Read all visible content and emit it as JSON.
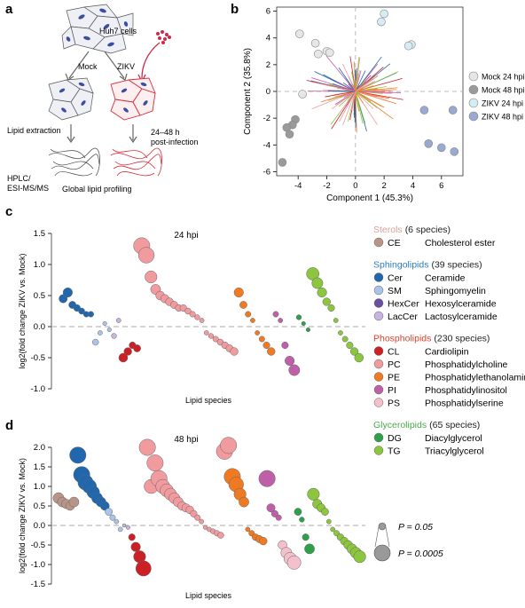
{
  "panels": {
    "a": {
      "letter": "a",
      "labels": {
        "cells": "Huh7 cells",
        "mock": "Mock",
        "zikv": "ZIKV",
        "lipid_extraction": "Lipid extraction",
        "timing_line1": "24–48 h",
        "timing_line2": "post-infection",
        "hplc_line1": "HPLC/",
        "hplc_line2": "ESI-MS/MS",
        "global": "Global lipid profiling"
      }
    },
    "b": {
      "letter": "b",
      "chart_data": {
        "type": "scatter",
        "xlabel": "Component 1 (45.3%)",
        "ylabel": "Component 2 (35.8%)",
        "xlim": [
          -5.5,
          7.5
        ],
        "ylim": [
          -6.3,
          6.3
        ],
        "xticks": [
          -4,
          -2,
          0,
          2,
          4,
          6
        ],
        "yticks": [
          -6,
          -4,
          -2,
          0,
          2,
          4,
          6
        ],
        "legend_position": "right",
        "series": [
          {
            "name": "Mock 24 hpi",
            "color": "#e6e6e6",
            "points": [
              [
                -3.9,
                4.3
              ],
              [
                -2.8,
                3.6
              ],
              [
                -2.0,
                3.0
              ],
              [
                -1.8,
                2.9
              ],
              [
                -2.6,
                2.8
              ],
              [
                -3.7,
                -0.2
              ]
            ]
          },
          {
            "name": "Mock 48 hpi",
            "color": "#9a9a9a",
            "points": [
              [
                -4.2,
                -2.1
              ],
              [
                -4.4,
                -2.5
              ],
              [
                -4.8,
                -2.7
              ],
              [
                -4.6,
                -3.2
              ],
              [
                -5.1,
                -5.3
              ]
            ]
          },
          {
            "name": "ZIKV 24 hpi",
            "color": "#d4edf2",
            "points": [
              [
                2.0,
                5.8
              ],
              [
                1.8,
                5.2
              ],
              [
                3.9,
                3.5
              ],
              [
                3.7,
                3.4
              ]
            ]
          },
          {
            "name": "ZIKV 48 hpi",
            "color": "#99a9cf",
            "points": [
              [
                4.8,
                -1.4
              ],
              [
                6.8,
                -1.4
              ],
              [
                5.1,
                -3.9
              ],
              [
                6.0,
                -4.2
              ],
              [
                6.9,
                -4.5
              ]
            ]
          }
        ]
      }
    },
    "c": {
      "letter": "c",
      "chart_data": {
        "type": "scatter",
        "title": "24 hpi",
        "xlabel": "Lipid species",
        "ylabel": "log2(fold change ZIKV vs. Mock)",
        "ylim": [
          -1.0,
          1.5
        ],
        "yticks": [
          "1.5",
          "1.0",
          "0.5",
          "0.0",
          "-0.5",
          "-1.0"
        ],
        "groups": [
          {
            "class": "CE",
            "color": "#b99488",
            "values": []
          },
          {
            "class": "Cer",
            "color": "#2167ae",
            "values": [
              0.45,
              0.55,
              0.35,
              0.3,
              0.25,
              0.2,
              0.2
            ]
          },
          {
            "class": "SM",
            "color": "#a9c4e8",
            "values": [
              -0.25,
              -0.1,
              0.05,
              -0.05
            ]
          },
          {
            "class": "LacCer",
            "color": "#c7b4e0",
            "values": [
              -0.15,
              0.1
            ]
          },
          {
            "class": "CL",
            "color": "#cc2027",
            "values": [
              -0.5,
              -0.4,
              -0.3,
              -0.35
            ]
          },
          {
            "class": "PC",
            "color": "#f19b9f",
            "values": [
              1.3,
              1.15,
              0.8,
              0.6,
              0.5,
              0.45,
              0.4,
              0.35,
              0.3,
              0.3,
              0.25,
              0.2,
              0.15,
              0.1,
              -0.1,
              -0.15,
              -0.2,
              -0.25,
              -0.3,
              -0.35,
              -0.4
            ]
          },
          {
            "class": "PE",
            "color": "#f07a21",
            "values": [
              0.55,
              0.35,
              0.2,
              0.1,
              -0.1,
              -0.2,
              -0.3,
              -0.4
            ]
          },
          {
            "class": "PI",
            "color": "#bf5fa8",
            "values": [
              0.2,
              0.1,
              -0.3,
              -0.55,
              -0.7
            ]
          },
          {
            "class": "DG",
            "color": "#2ca14a",
            "values": [
              0.15,
              0.05,
              -0.05
            ]
          },
          {
            "class": "TG",
            "color": "#8cc63f",
            "values": [
              0.85,
              0.7,
              0.55,
              0.4,
              0.3,
              0.1,
              -0.1,
              -0.2,
              -0.3,
              -0.4,
              -0.5
            ]
          }
        ]
      }
    },
    "d": {
      "letter": "d",
      "chart_data": {
        "type": "scatter",
        "title": "48 hpi",
        "xlabel": "Lipid species",
        "ylabel": "log2(fold change ZIKV vs. Mock)",
        "ylim": [
          -1.5,
          2.0
        ],
        "yticks": [
          "2.0",
          "1.5",
          "1.0",
          "0.5",
          "0.0",
          "-0.5",
          "-1.0",
          "-1.5"
        ],
        "groups": [
          {
            "class": "CE",
            "color": "#b99488",
            "values": [
              0.7,
              0.6,
              0.55,
              0.5,
              0.6
            ]
          },
          {
            "class": "Cer",
            "color": "#2167ae",
            "values": [
              1.8,
              1.3,
              1.1,
              1.0,
              0.85,
              0.7,
              0.6,
              0.5
            ]
          },
          {
            "class": "SM",
            "color": "#a9c4e8",
            "values": [
              0.35,
              0.2,
              0.1,
              -0.1
            ]
          },
          {
            "class": "LacCer",
            "color": "#c7b4e0",
            "values": [
              0.0,
              -0.05
            ]
          },
          {
            "class": "CL",
            "color": "#cc2027",
            "values": [
              -0.3,
              -0.55,
              -0.8,
              -1.1
            ]
          },
          {
            "class": "PC",
            "color": "#f19b9f",
            "values": [
              2.0,
              1.0,
              1.6,
              1.2,
              1.0,
              0.9,
              0.8,
              0.7,
              0.6,
              0.5,
              0.45,
              0.4,
              0.3,
              0.2,
              0.1,
              -0.05,
              -0.1,
              -0.15,
              -0.2,
              -0.25,
              1.9,
              2.05
            ]
          },
          {
            "class": "PE",
            "color": "#f07a21",
            "values": [
              1.25,
              1.05,
              0.8,
              0.6,
              -0.1,
              -0.2,
              -0.3,
              -0.35,
              -0.4
            ]
          },
          {
            "class": "PI",
            "color": "#bf5fa8",
            "values": [
              1.2,
              0.45,
              0.3,
              0.2
            ]
          },
          {
            "class": "PS",
            "color": "#f4c0cc",
            "values": [
              -0.5,
              -0.7,
              -0.85,
              -0.95
            ]
          },
          {
            "class": "DG",
            "color": "#2ca14a",
            "values": [
              0.35,
              0.15,
              -0.3,
              -0.6
            ]
          },
          {
            "class": "TG",
            "color": "#8cc63f",
            "values": [
              0.8,
              0.55,
              0.45,
              0.35,
              0.1,
              -0.1,
              -0.2,
              -0.3,
              -0.4,
              -0.5,
              -0.6,
              -0.7,
              -0.8
            ]
          }
        ]
      }
    }
  },
  "legend": {
    "groups": [
      {
        "title": "Sterols",
        "count": "(6 species)",
        "title_color": "#d9a0a0",
        "items": [
          {
            "abbr": "CE",
            "name": "Cholesterol ester",
            "color": "#b99488"
          }
        ]
      },
      {
        "title": "Sphingolipids",
        "count": "(39 species)",
        "title_color": "#2a7ec0",
        "items": [
          {
            "abbr": "Cer",
            "name": "Ceramide",
            "color": "#2167ae"
          },
          {
            "abbr": "SM",
            "name": "Sphingomyelin",
            "color": "#a9c4e8"
          },
          {
            "abbr": "HexCer",
            "name": "Hexosylceramide",
            "color": "#6a4f9c"
          },
          {
            "abbr": "LacCer",
            "name": "Lactosylceramide",
            "color": "#c7b4e0"
          }
        ]
      },
      {
        "title": "Phospholipids",
        "count": "(230 species)",
        "title_color": "#e0402a",
        "items": [
          {
            "abbr": "CL",
            "name": "Cardiolipin",
            "color": "#cc2027"
          },
          {
            "abbr": "PC",
            "name": "Phosphatidylcholine",
            "color": "#f19b9f"
          },
          {
            "abbr": "PE",
            "name": "Phosphatidylethanolamine",
            "color": "#f07a21"
          },
          {
            "abbr": "PI",
            "name": "Phosphatidylinositol",
            "color": "#bf5fa8"
          },
          {
            "abbr": "PS",
            "name": "Phosphatidylserine",
            "color": "#f4c0cc"
          }
        ]
      },
      {
        "title": "Glycerolipids",
        "count": "(65 species)",
        "title_color": "#4aa84a",
        "items": [
          {
            "abbr": "DG",
            "name": "Diacylglycerol",
            "color": "#2ca14a"
          },
          {
            "abbr": "TG",
            "name": "Triacylglycerol",
            "color": "#8cc63f"
          }
        ]
      }
    ],
    "size_key": [
      {
        "label": "P = 0.05",
        "radius_rank": "small"
      },
      {
        "label": "P = 0.0005",
        "radius_rank": "large"
      }
    ]
  }
}
